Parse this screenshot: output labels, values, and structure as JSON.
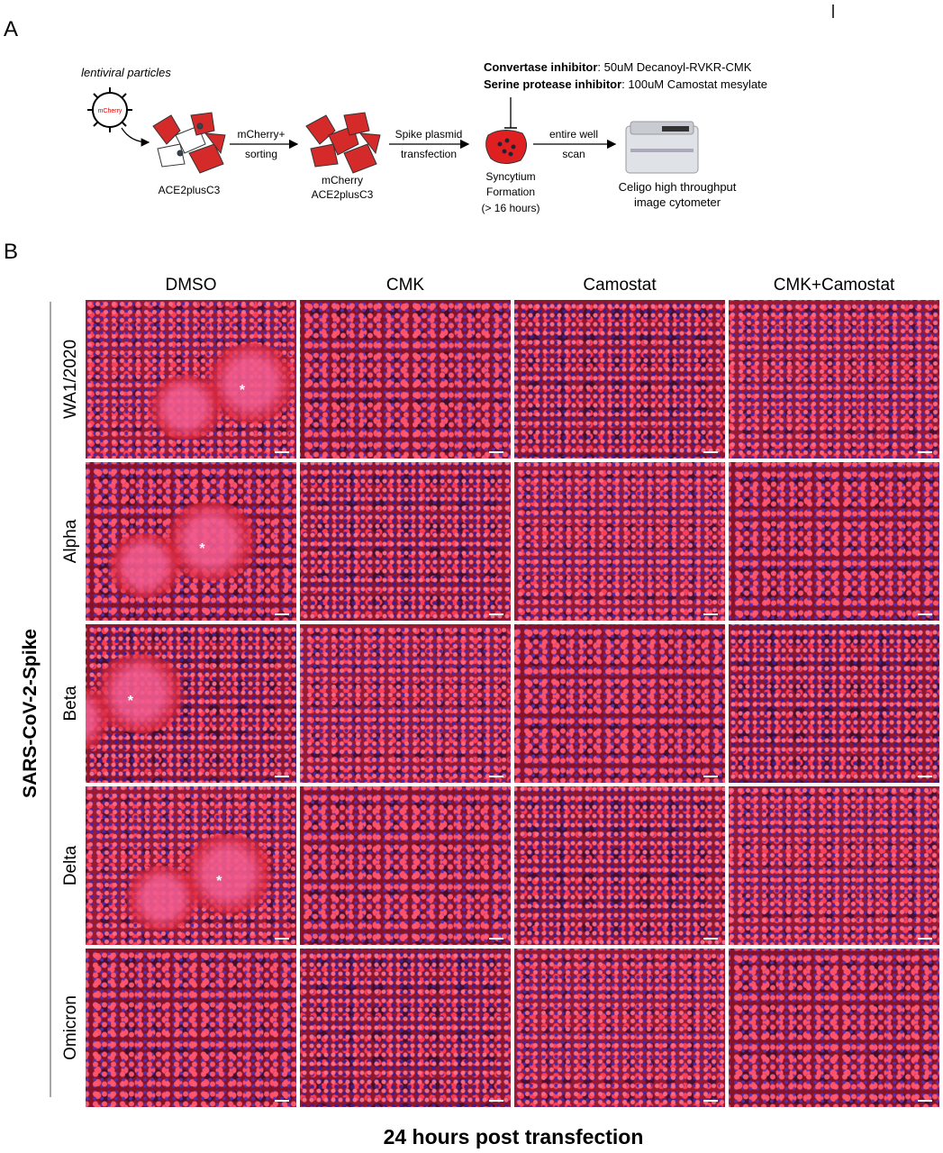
{
  "panel_a": {
    "label": "A",
    "lentiviral_label": "lentiviral particles",
    "virus_label": "mCherry",
    "cells_label": "ACE2plusC3",
    "step1": [
      "mCherry+",
      "sorting"
    ],
    "sorted_cells": [
      "mCherry",
      "ACE2plusC3"
    ],
    "step2": [
      "Spike plasmid",
      "transfection"
    ],
    "inhibitors": [
      {
        "name": "Convertase inhibitor",
        "detail": ": 50uM Decanoyl-RVKR-CMK"
      },
      {
        "name": "Serine protease inhibitor",
        "detail": ": 100uM Camostat mesylate"
      }
    ],
    "syncytium": [
      "Syncytium",
      "Formation",
      "(> 16 hours)"
    ],
    "step3": [
      "entire well",
      "scan"
    ],
    "instrument": [
      "Celigo high throughput",
      "image cytometer"
    ]
  },
  "panel_b": {
    "label": "B",
    "columns": [
      "DMSO",
      "CMK",
      "Camostat",
      "CMK+Camostat"
    ],
    "rows": [
      {
        "label": "WA1/2020",
        "marker": "*"
      },
      {
        "label": "Alpha",
        "marker": "*"
      },
      {
        "label": "Beta",
        "marker": "*"
      },
      {
        "label": "Delta",
        "marker": "*"
      },
      {
        "label": "Omicron"
      }
    ],
    "y_label": "SARS-CoV-2-Spike",
    "footer": "24 hours post transfection"
  }
}
